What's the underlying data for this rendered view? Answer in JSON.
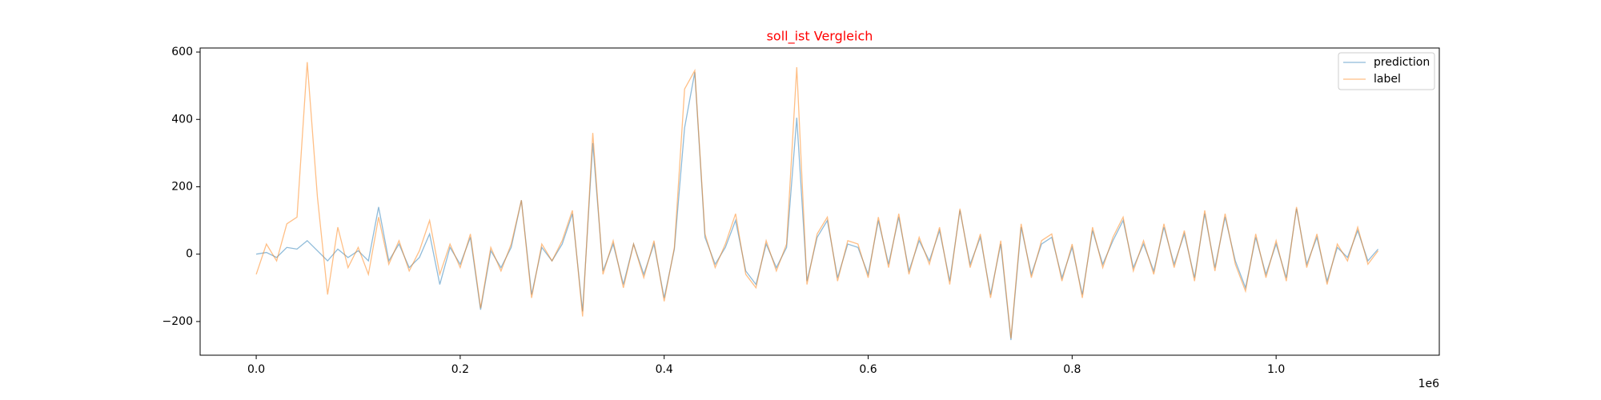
{
  "chart_data": {
    "type": "line",
    "title": "soll_ist Vergleich",
    "title_color": "#ff0000",
    "x": [
      0,
      10000,
      20000,
      30000,
      40000,
      50000,
      60000,
      70000,
      80000,
      90000,
      100000,
      110000,
      120000,
      130000,
      140000,
      150000,
      160000,
      170000,
      180000,
      190000,
      200000,
      210000,
      220000,
      230000,
      240000,
      250000,
      260000,
      270000,
      280000,
      290000,
      300000,
      310000,
      320000,
      330000,
      340000,
      350000,
      360000,
      370000,
      380000,
      390000,
      400000,
      410000,
      420000,
      430000,
      440000,
      450000,
      460000,
      470000,
      480000,
      490000,
      500000,
      510000,
      520000,
      530000,
      540000,
      550000,
      560000,
      570000,
      580000,
      590000,
      600000,
      610000,
      620000,
      630000,
      640000,
      650000,
      660000,
      670000,
      680000,
      690000,
      700000,
      710000,
      720000,
      730000,
      740000,
      750000,
      760000,
      770000,
      780000,
      790000,
      800000,
      810000,
      820000,
      830000,
      840000,
      850000,
      860000,
      870000,
      880000,
      890000,
      900000,
      910000,
      920000,
      930000,
      940000,
      950000,
      960000,
      970000,
      980000,
      990000,
      1000000,
      1010000,
      1020000,
      1030000,
      1040000,
      1050000,
      1060000,
      1070000,
      1080000,
      1090000,
      1100000
    ],
    "series": [
      {
        "name": "prediction",
        "color": "#1f77b4",
        "values": [
          0,
          5,
          -10,
          20,
          15,
          40,
          10,
          -20,
          15,
          -10,
          10,
          -20,
          140,
          -20,
          30,
          -40,
          -10,
          60,
          -90,
          20,
          -30,
          50,
          -165,
          10,
          -40,
          20,
          160,
          -120,
          20,
          -20,
          30,
          120,
          -170,
          330,
          -50,
          30,
          -90,
          30,
          -60,
          30,
          -130,
          15,
          375,
          540,
          50,
          -30,
          20,
          100,
          -50,
          -90,
          30,
          -40,
          20,
          405,
          -80,
          50,
          100,
          -70,
          30,
          20,
          -60,
          100,
          -30,
          110,
          -50,
          40,
          -20,
          70,
          -80,
          130,
          -30,
          50,
          -120,
          30,
          -255,
          80,
          -60,
          30,
          50,
          -70,
          20,
          -120,
          70,
          -30,
          40,
          100,
          -40,
          30,
          -50,
          80,
          -30,
          60,
          -70,
          120,
          -40,
          110,
          -20,
          -100,
          50,
          -60,
          30,
          -70,
          135,
          -30,
          50,
          -80,
          20,
          -10,
          70,
          -20,
          15
        ]
      },
      {
        "name": "label",
        "color": "#ff7f0e",
        "values": [
          -60,
          30,
          -20,
          90,
          110,
          570,
          170,
          -120,
          80,
          -40,
          20,
          -60,
          110,
          -30,
          40,
          -50,
          10,
          100,
          -60,
          30,
          -40,
          60,
          -160,
          20,
          -50,
          30,
          160,
          -130,
          30,
          -20,
          40,
          130,
          -185,
          360,
          -60,
          40,
          -100,
          30,
          -70,
          40,
          -140,
          20,
          490,
          545,
          60,
          -40,
          30,
          120,
          -60,
          -100,
          40,
          -50,
          30,
          555,
          -90,
          60,
          110,
          -80,
          40,
          30,
          -70,
          110,
          -40,
          120,
          -60,
          50,
          -30,
          80,
          -90,
          135,
          -40,
          60,
          -130,
          40,
          -250,
          90,
          -70,
          40,
          60,
          -80,
          30,
          -130,
          80,
          -40,
          50,
          110,
          -50,
          40,
          -60,
          90,
          -40,
          70,
          -80,
          130,
          -50,
          120,
          -30,
          -110,
          60,
          -70,
          40,
          -80,
          140,
          -40,
          60,
          -90,
          30,
          -20,
          80,
          -30,
          10
        ]
      }
    ],
    "xlim": [
      -55000,
      1160000
    ],
    "xticks": [
      {
        "value": 0,
        "label": "0.0"
      },
      {
        "value": 200000,
        "label": "0.2"
      },
      {
        "value": 400000,
        "label": "0.4"
      },
      {
        "value": 600000,
        "label": "0.6"
      },
      {
        "value": 800000,
        "label": "0.8"
      },
      {
        "value": 1000000,
        "label": "1.0"
      }
    ],
    "x_offset_label": "1e6",
    "ylim": [
      -300,
      612
    ],
    "yticks": [
      {
        "value": -200,
        "label": "−200"
      },
      0,
      200,
      400,
      600
    ],
    "grid": false,
    "legend": "upper right"
  }
}
